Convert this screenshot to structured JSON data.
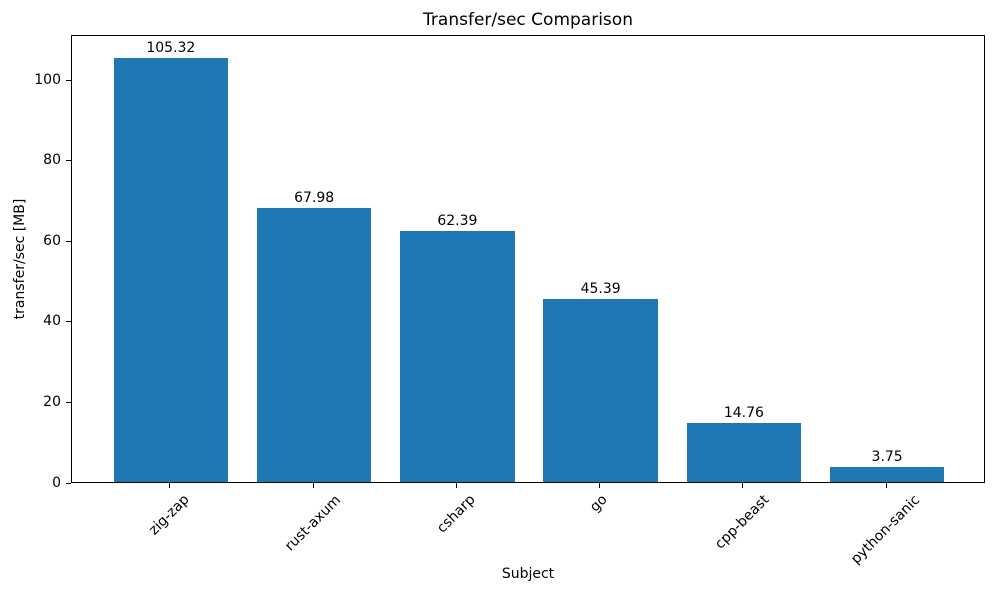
{
  "chart_data": {
    "type": "bar",
    "title": "Transfer/sec Comparison",
    "xlabel": "Subject",
    "ylabel": "transfer/sec [MB]",
    "categories": [
      "zig-zap",
      "rust-axum",
      "csharp",
      "go",
      "cpp-beast",
      "python-sanic"
    ],
    "values": [
      105.32,
      67.98,
      62.39,
      45.39,
      14.76,
      3.75
    ],
    "bar_labels": [
      "105.32",
      "67.98",
      "62.39",
      "45.39",
      "14.76",
      "3.75"
    ],
    "bar_color": "#1f77b4",
    "yticks": [
      0,
      20,
      40,
      60,
      80,
      100
    ],
    "ylim": [
      0,
      111.2
    ],
    "xlim": [
      -0.69,
      5.69
    ],
    "bar_width_units": 0.8,
    "x_tick_rotation_deg": 45,
    "grid": false,
    "legend": "none"
  }
}
